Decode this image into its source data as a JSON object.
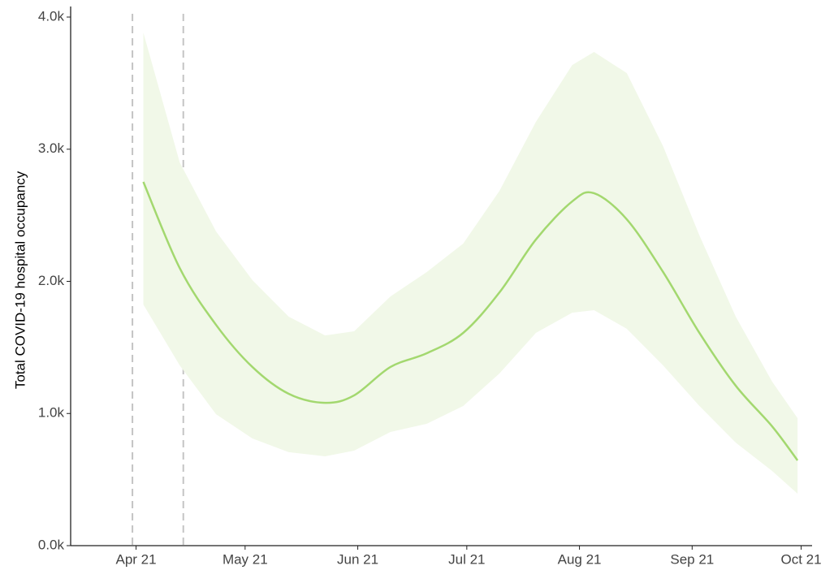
{
  "chart_data": {
    "type": "line",
    "y_label": "Total COVID-19 hospital occupancy",
    "x": [
      2,
      12,
      22,
      32,
      42,
      52,
      60,
      70,
      80,
      90,
      100,
      110,
      120,
      126,
      135,
      145,
      155,
      165,
      175,
      182
    ],
    "series": [
      {
        "color": "#a3d86f",
        "band_color": "#f1f8e8",
        "values": [
          2753,
          2101,
          1671,
          1352,
          1149,
          1081,
          1137,
          1352,
          1456,
          1610,
          1917,
          2316,
          2605,
          2667,
          2470,
          2071,
          1610,
          1210,
          903,
          645
        ],
        "lower": [
          1825,
          1364,
          995,
          811,
          707,
          676,
          719,
          860,
          922,
          1057,
          1303,
          1610,
          1763,
          1782,
          1641,
          1364,
          1057,
          780,
          565,
          393
        ],
        "upper": [
          3883,
          2900,
          2378,
          2009,
          1733,
          1591,
          1622,
          1886,
          2071,
          2286,
          2685,
          3207,
          3637,
          3736,
          3576,
          3023,
          2347,
          1733,
          1241,
          965
        ]
      }
    ],
    "vlines": [
      -1,
      13
    ],
    "xlim": [
      -18,
      186
    ],
    "xticks": [
      {
        "value": 0,
        "label": "Apr 21"
      },
      {
        "value": 30,
        "label": "May 21"
      },
      {
        "value": 61,
        "label": "Jun 21"
      },
      {
        "value": 91,
        "label": "Jul 21"
      },
      {
        "value": 122,
        "label": "Aug 21"
      },
      {
        "value": 153,
        "label": "Sep 21"
      },
      {
        "value": 183,
        "label": "Oct 21"
      }
    ],
    "ylim": [
      0,
      4080
    ],
    "yticks": [
      {
        "value": 0,
        "label": "0.0k"
      },
      {
        "value": 1000,
        "label": "1.0k"
      },
      {
        "value": 2000,
        "label": "2.0k"
      },
      {
        "value": 3000,
        "label": "3.0k"
      },
      {
        "value": 4000,
        "label": "4.0k"
      }
    ]
  }
}
